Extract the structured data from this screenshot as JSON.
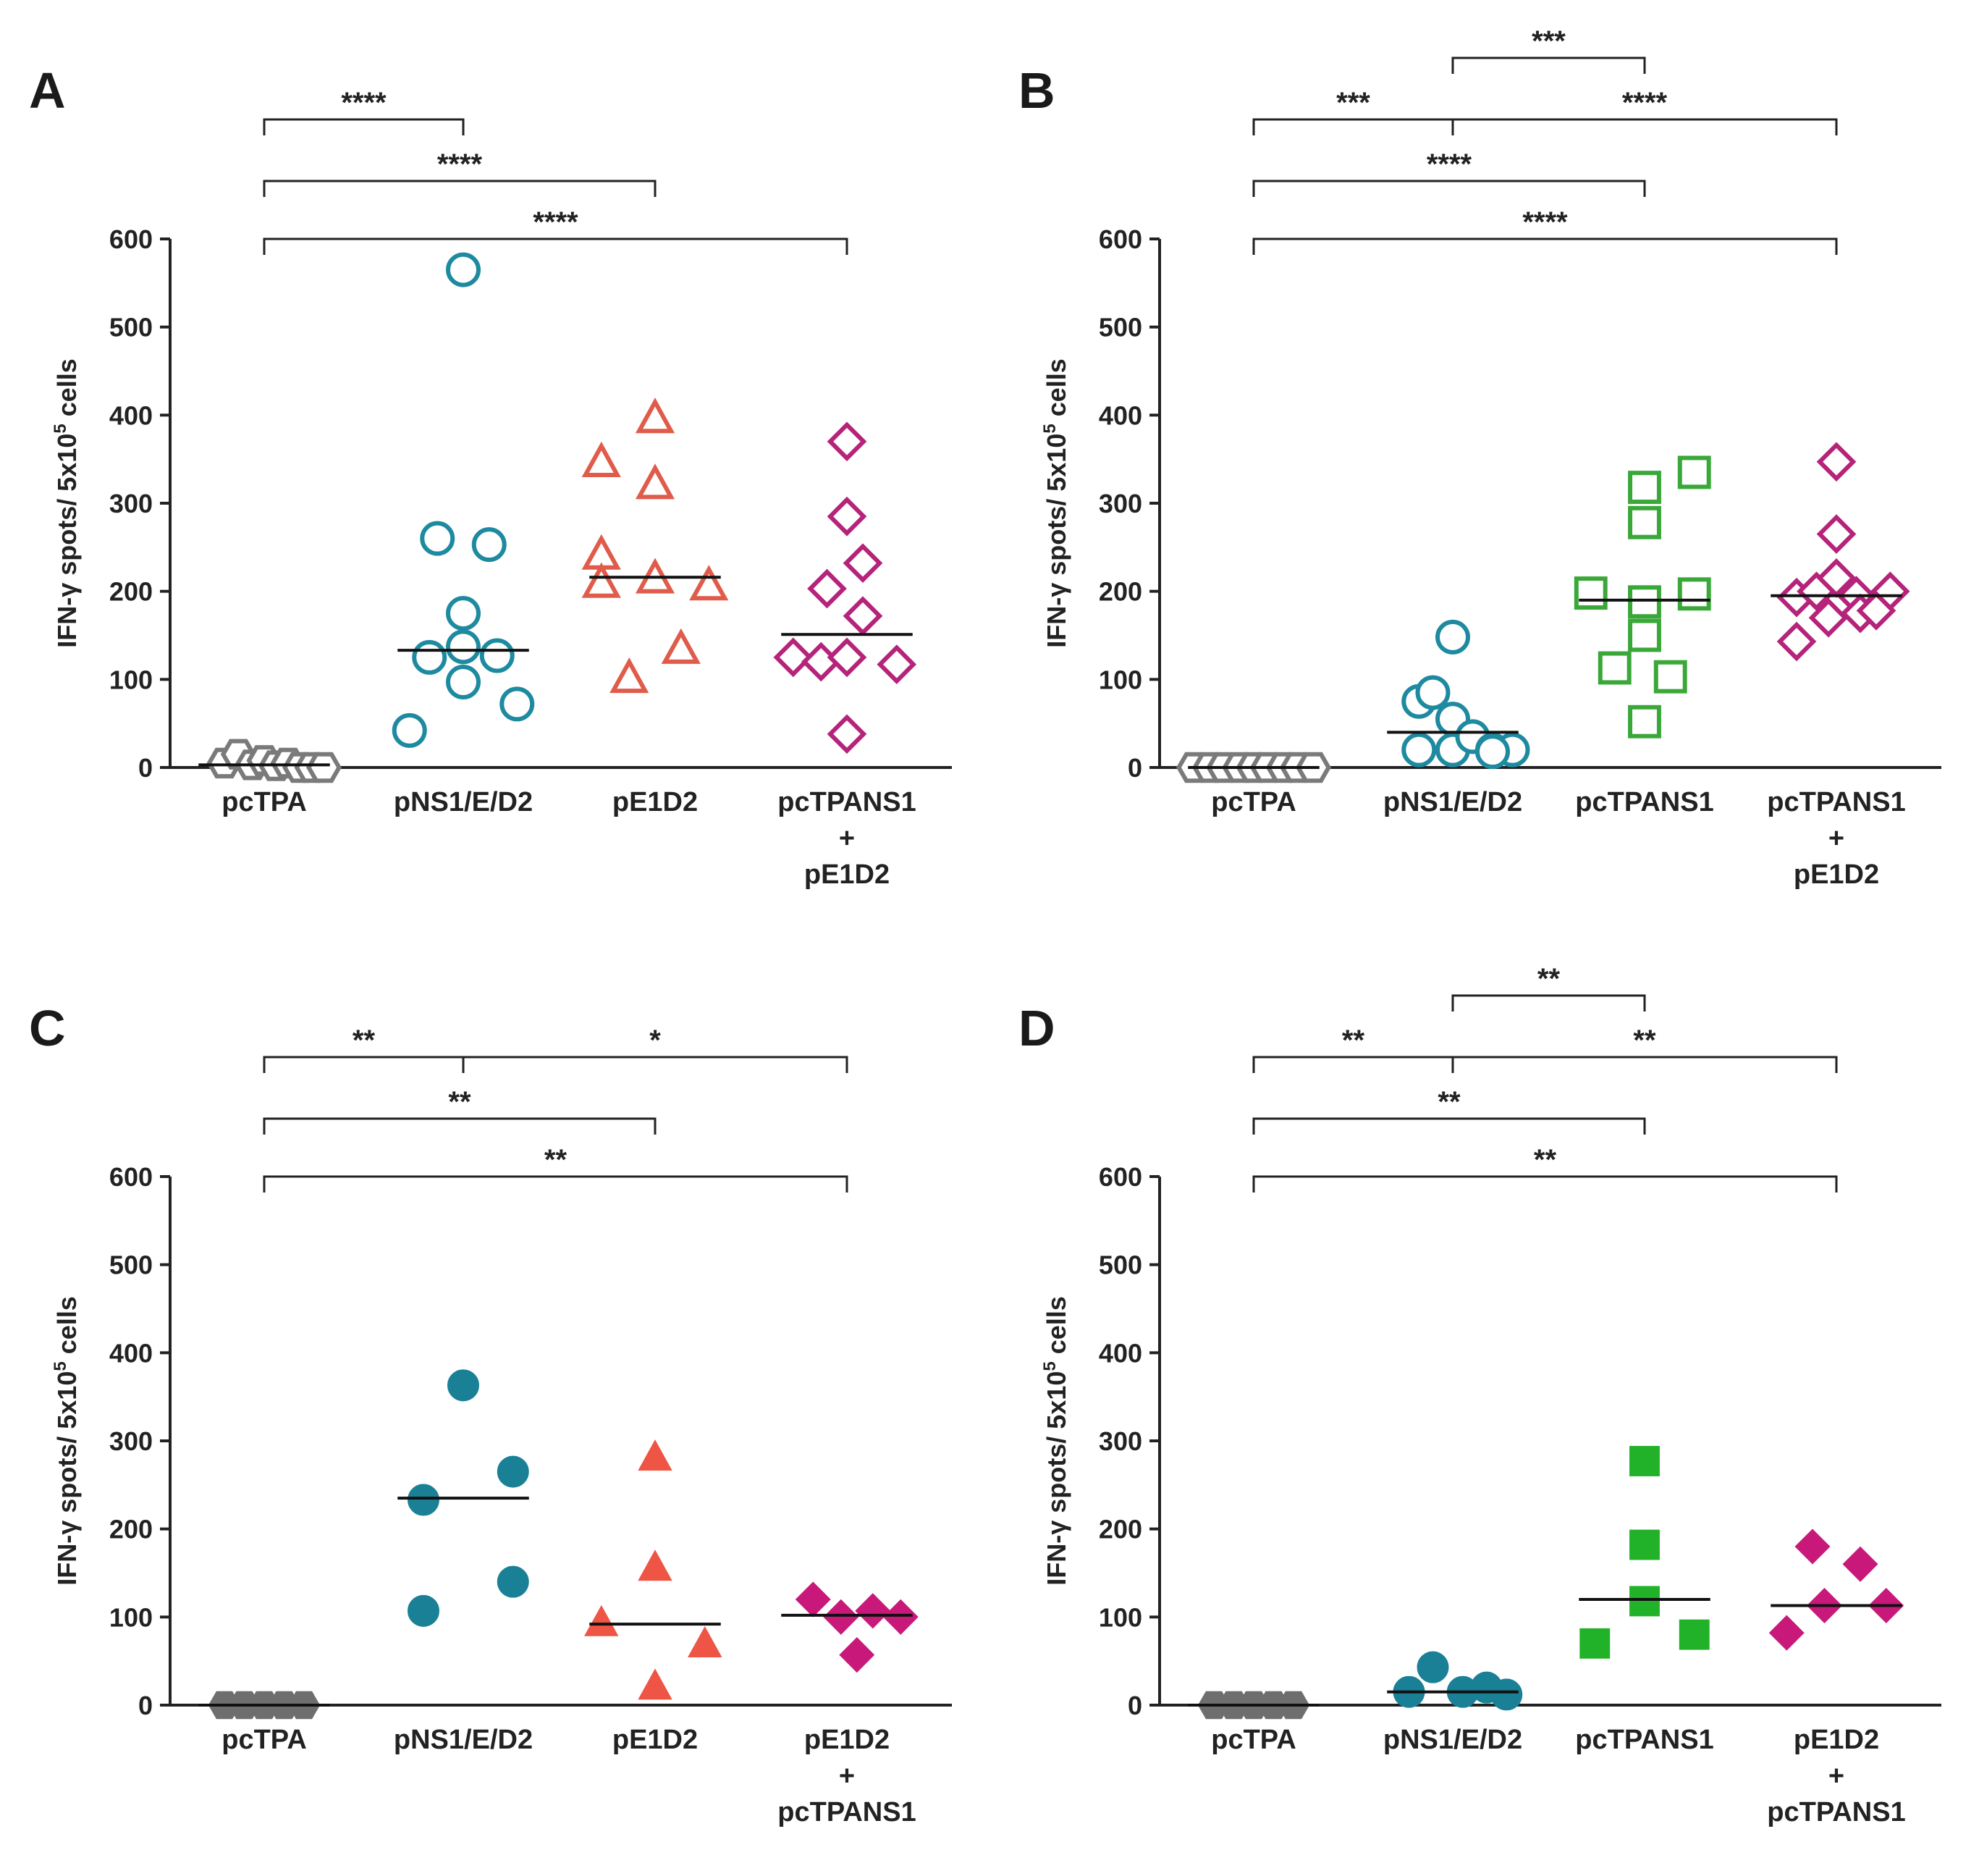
{
  "chart_data": [
    {
      "panel": "A",
      "type": "scatter",
      "ylabel_parts": [
        "IFN-γ spots/ 5x10",
        "5",
        " cells"
      ],
      "ylim": [
        0,
        600
      ],
      "yticks": [
        0,
        100,
        200,
        300,
        400,
        500,
        600
      ],
      "categories": [
        "pcTPA",
        "pNS1/E/D2",
        "pE1D2",
        "pcTPANS1\n+\npE1D2"
      ],
      "series": [
        {
          "name": "pcTPA",
          "marker": "hexagon",
          "fill": false,
          "color": "#7a7a7a",
          "median": 3,
          "points": [
            [
              -0.2,
              5
            ],
            [
              -0.13,
              15
            ],
            [
              -0.06,
              3
            ],
            [
              0.0,
              8
            ],
            [
              0.06,
              2
            ],
            [
              0.12,
              5
            ],
            [
              0.18,
              0
            ],
            [
              0.24,
              0
            ],
            [
              0.3,
              0
            ]
          ]
        },
        {
          "name": "pNS1/E/D2",
          "marker": "circle",
          "fill": false,
          "color": "#1e8aa0",
          "median": 133,
          "points": [
            [
              0.0,
              565
            ],
            [
              -0.13,
              260
            ],
            [
              0.13,
              253
            ],
            [
              0.0,
              175
            ],
            [
              -0.17,
              125
            ],
            [
              0.0,
              137
            ],
            [
              0.17,
              127
            ],
            [
              0.0,
              97
            ],
            [
              0.27,
              72
            ],
            [
              -0.27,
              42
            ]
          ]
        },
        {
          "name": "pE1D2",
          "marker": "triangle",
          "fill": false,
          "color": "#e05b4a",
          "median": 216,
          "points": [
            [
              0.0,
              395
            ],
            [
              -0.27,
              345
            ],
            [
              0.0,
              320
            ],
            [
              -0.27,
              240
            ],
            [
              -0.27,
              208
            ],
            [
              0.0,
              213
            ],
            [
              0.27,
              205
            ],
            [
              0.13,
              133
            ],
            [
              -0.13,
              100
            ]
          ]
        },
        {
          "name": "pcTPANS1 + pE1D2",
          "marker": "diamond",
          "fill": false,
          "color": "#b5237a",
          "median": 151,
          "points": [
            [
              0.0,
              370
            ],
            [
              0.0,
              285
            ],
            [
              0.08,
              232
            ],
            [
              -0.1,
              203
            ],
            [
              0.08,
              172
            ],
            [
              -0.27,
              125
            ],
            [
              -0.13,
              120
            ],
            [
              0.0,
              125
            ],
            [
              0.25,
              117
            ],
            [
              0.0,
              38
            ]
          ]
        }
      ],
      "significance": [
        {
          "label": "****",
          "x1": 0,
          "x2": 1,
          "tier": 3
        },
        {
          "label": "****",
          "x1": 0,
          "x2": 2,
          "tier": 2
        },
        {
          "label": "****",
          "x1": 0,
          "x2": 3,
          "tier": 1
        }
      ]
    },
    {
      "panel": "B",
      "type": "scatter",
      "ylabel_parts": [
        "IFN-γ spots/ 5x10",
        "5",
        " cells"
      ],
      "ylim": [
        0,
        600
      ],
      "yticks": [
        0,
        100,
        200,
        300,
        400,
        500,
        600
      ],
      "categories": [
        "pcTPA",
        "pNS1/E/D2",
        "pcTPANS1",
        "pcTPANS1\n+\npE1D2"
      ],
      "series": [
        {
          "name": "pcTPA",
          "marker": "hexagon",
          "fill": false,
          "color": "#7a7a7a",
          "median": 0,
          "points": [
            [
              -0.3,
              0
            ],
            [
              -0.22,
              0
            ],
            [
              -0.15,
              0
            ],
            [
              -0.07,
              0
            ],
            [
              0.0,
              0
            ],
            [
              0.07,
              0
            ],
            [
              0.15,
              0
            ],
            [
              0.22,
              0
            ],
            [
              0.3,
              0
            ]
          ]
        },
        {
          "name": "pNS1/E/D2",
          "marker": "circle",
          "fill": false,
          "color": "#1e8aa0",
          "median": 40,
          "points": [
            [
              0.0,
              148
            ],
            [
              -0.17,
              75
            ],
            [
              -0.1,
              85
            ],
            [
              0.0,
              55
            ],
            [
              -0.17,
              20
            ],
            [
              0.0,
              20
            ],
            [
              0.1,
              35
            ],
            [
              0.2,
              20
            ],
            [
              0.3,
              20
            ],
            [
              0.2,
              18
            ]
          ]
        },
        {
          "name": "pcTPANS1",
          "marker": "square",
          "fill": false,
          "color": "#3aa838",
          "median": 190,
          "points": [
            [
              0.25,
              335
            ],
            [
              0.0,
              318
            ],
            [
              0.0,
              278
            ],
            [
              -0.27,
              198
            ],
            [
              0.0,
              188
            ],
            [
              0.25,
              197
            ],
            [
              0.0,
              150
            ],
            [
              -0.15,
              113
            ],
            [
              0.13,
              103
            ],
            [
              0.0,
              52
            ]
          ]
        },
        {
          "name": "pcTPANS1 + pE1D2",
          "marker": "diamond",
          "fill": false,
          "color": "#b5237a",
          "median": 195,
          "points": [
            [
              0.0,
              347
            ],
            [
              0.0,
              265
            ],
            [
              -0.2,
              193
            ],
            [
              -0.1,
              200
            ],
            [
              0.0,
              215
            ],
            [
              0.1,
              195
            ],
            [
              0.27,
              200
            ],
            [
              -0.04,
              170
            ],
            [
              0.12,
              175
            ],
            [
              0.2,
              178
            ],
            [
              -0.2,
              143
            ]
          ]
        }
      ],
      "significance": [
        {
          "label": "***",
          "x1": 1,
          "x2": 2,
          "tier": 4
        },
        {
          "label": "***",
          "x1": 0,
          "x2": 1,
          "tier": 3
        },
        {
          "label": "****",
          "x1": 1,
          "x2": 3,
          "tier": 3
        },
        {
          "label": "****",
          "x1": 0,
          "x2": 2,
          "tier": 2
        },
        {
          "label": "****",
          "x1": 0,
          "x2": 3,
          "tier": 1
        }
      ]
    },
    {
      "panel": "C",
      "type": "scatter",
      "ylabel_parts": [
        "IFN-γ spots/ 5x10",
        "5",
        " cells"
      ],
      "ylim": [
        0,
        600
      ],
      "yticks": [
        0,
        100,
        200,
        300,
        400,
        500,
        600
      ],
      "categories": [
        "pcTPA",
        "pNS1/E/D2",
        "pE1D2",
        "pE1D2\n+\npcTPANS1"
      ],
      "series": [
        {
          "name": "pcTPA",
          "marker": "hexagon",
          "fill": true,
          "color": "#6e6e6e",
          "median": 0,
          "points": [
            [
              -0.2,
              0
            ],
            [
              -0.1,
              0
            ],
            [
              0.0,
              0
            ],
            [
              0.1,
              0
            ],
            [
              0.2,
              0
            ]
          ]
        },
        {
          "name": "pNS1/E/D2",
          "marker": "circle",
          "fill": true,
          "color": "#1a8096",
          "median": 235,
          "points": [
            [
              0.0,
              363
            ],
            [
              0.25,
              265
            ],
            [
              -0.2,
              233
            ],
            [
              0.25,
              140
            ],
            [
              -0.2,
              107
            ]
          ]
        },
        {
          "name": "pE1D2",
          "marker": "triangle",
          "fill": true,
          "color": "#ee5545",
          "median": 92,
          "points": [
            [
              0.0,
              280
            ],
            [
              0.0,
              155
            ],
            [
              -0.27,
              92
            ],
            [
              0.25,
              68
            ],
            [
              0.0,
              20
            ]
          ]
        },
        {
          "name": "pE1D2 + pcTPANS1",
          "marker": "diamond",
          "fill": true,
          "color": "#c8197a",
          "median": 102,
          "points": [
            [
              -0.17,
              120
            ],
            [
              -0.03,
              100
            ],
            [
              0.13,
              107
            ],
            [
              0.27,
              100
            ],
            [
              0.05,
              57
            ]
          ]
        }
      ],
      "significance": [
        {
          "label": "**",
          "x1": 0,
          "x2": 3,
          "tier": 1
        },
        {
          "label": "**",
          "x1": 0,
          "x2": 2,
          "tier": 2
        },
        {
          "label": "**",
          "x1": 0,
          "x2": 1,
          "tier": 3
        },
        {
          "label": "*",
          "x1": 1,
          "x2": 3,
          "tier": 3
        }
      ]
    },
    {
      "panel": "D",
      "type": "scatter",
      "ylabel_parts": [
        "IFN-γ spots/ 5x10",
        "5",
        " cells"
      ],
      "ylim": [
        0,
        600
      ],
      "yticks": [
        0,
        100,
        200,
        300,
        400,
        500,
        600
      ],
      "categories": [
        "pcTPA",
        "pNS1/E/D2",
        "pcTPANS1",
        "pE1D2\n+\npcTPANS1"
      ],
      "series": [
        {
          "name": "pcTPA",
          "marker": "hexagon",
          "fill": true,
          "color": "#6e6e6e",
          "median": 0,
          "points": [
            [
              -0.2,
              0
            ],
            [
              -0.1,
              0
            ],
            [
              0.0,
              0
            ],
            [
              0.1,
              0
            ],
            [
              0.2,
              0
            ]
          ]
        },
        {
          "name": "pNS1/E/D2",
          "marker": "circle",
          "fill": true,
          "color": "#1a8096",
          "median": 15,
          "points": [
            [
              -0.1,
              43
            ],
            [
              -0.22,
              15
            ],
            [
              0.05,
              15
            ],
            [
              0.17,
              20
            ],
            [
              0.27,
              12
            ]
          ]
        },
        {
          "name": "pcTPANS1",
          "marker": "square",
          "fill": true,
          "color": "#22b22a",
          "median": 120,
          "points": [
            [
              0.0,
              277
            ],
            [
              0.0,
              182
            ],
            [
              0.0,
              118
            ],
            [
              0.25,
              80
            ],
            [
              -0.25,
              70
            ]
          ]
        },
        {
          "name": "pE1D2 + pcTPANS1",
          "marker": "diamond",
          "fill": true,
          "color": "#c8197a",
          "median": 113,
          "points": [
            [
              -0.12,
              180
            ],
            [
              0.12,
              160
            ],
            [
              -0.25,
              82
            ],
            [
              -0.06,
              113
            ],
            [
              0.25,
              113
            ]
          ]
        }
      ],
      "significance": [
        {
          "label": "**",
          "x1": 0,
          "x2": 3,
          "tier": 1
        },
        {
          "label": "**",
          "x1": 0,
          "x2": 2,
          "tier": 2
        },
        {
          "label": "**",
          "x1": 0,
          "x2": 1,
          "tier": 3
        },
        {
          "label": "**",
          "x1": 1,
          "x2": 3,
          "tier": 3
        },
        {
          "label": "**",
          "x1": 1,
          "x2": 2,
          "tier": 4
        }
      ]
    }
  ]
}
